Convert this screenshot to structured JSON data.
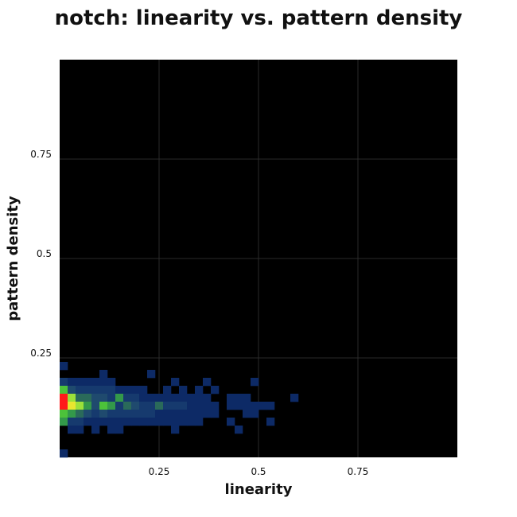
{
  "chart_data": {
    "type": "heatmap",
    "title": "notch: linearity vs. pattern density",
    "xlabel": "linearity",
    "ylabel": "pattern density",
    "xlim": [
      0,
      1
    ],
    "ylim": [
      0,
      1
    ],
    "xticks": [
      0.25,
      0.5,
      0.75
    ],
    "xtick_labels": [
      "0.25",
      "0.5",
      "0.75"
    ],
    "yticks": [
      0.25,
      0.5,
      0.75
    ],
    "ytick_labels": [
      "0.25",
      "0.5",
      "0.75"
    ],
    "grid": true,
    "bin_size": 0.02,
    "colors": {
      "background": "#000000",
      "grid": "#2a2a2a",
      "1": "#0d2a66",
      "2": "#163a6e",
      "3": "#1f4a6e",
      "4": "#2a6a5a",
      "5": "#33994a",
      "6": "#4cc23a",
      "7": "#9be03a",
      "8": "#e8e630",
      "9": "#ff1a1a"
    },
    "cells": [
      [
        0.0,
        0.22,
        1
      ],
      [
        0.0,
        0.0,
        1
      ],
      [
        0.1,
        0.2,
        1
      ],
      [
        0.22,
        0.2,
        1
      ],
      [
        0.0,
        0.18,
        2
      ],
      [
        0.02,
        0.18,
        1
      ],
      [
        0.04,
        0.18,
        1
      ],
      [
        0.06,
        0.18,
        1
      ],
      [
        0.08,
        0.18,
        1
      ],
      [
        0.1,
        0.18,
        1
      ],
      [
        0.12,
        0.18,
        1
      ],
      [
        0.28,
        0.18,
        1
      ],
      [
        0.36,
        0.18,
        1
      ],
      [
        0.48,
        0.18,
        1
      ],
      [
        0.0,
        0.16,
        6
      ],
      [
        0.02,
        0.16,
        3
      ],
      [
        0.04,
        0.16,
        2
      ],
      [
        0.06,
        0.16,
        2
      ],
      [
        0.08,
        0.16,
        2
      ],
      [
        0.1,
        0.16,
        2
      ],
      [
        0.12,
        0.16,
        2
      ],
      [
        0.14,
        0.16,
        1
      ],
      [
        0.16,
        0.16,
        1
      ],
      [
        0.18,
        0.16,
        1
      ],
      [
        0.2,
        0.16,
        1
      ],
      [
        0.26,
        0.16,
        1
      ],
      [
        0.3,
        0.16,
        1
      ],
      [
        0.34,
        0.16,
        1
      ],
      [
        0.38,
        0.16,
        1
      ],
      [
        0.0,
        0.14,
        9
      ],
      [
        0.02,
        0.14,
        7
      ],
      [
        0.04,
        0.14,
        4
      ],
      [
        0.06,
        0.14,
        4
      ],
      [
        0.08,
        0.14,
        3
      ],
      [
        0.1,
        0.14,
        3
      ],
      [
        0.12,
        0.14,
        2
      ],
      [
        0.14,
        0.14,
        5
      ],
      [
        0.16,
        0.14,
        2
      ],
      [
        0.18,
        0.14,
        2
      ],
      [
        0.2,
        0.14,
        1
      ],
      [
        0.22,
        0.14,
        1
      ],
      [
        0.24,
        0.14,
        1
      ],
      [
        0.26,
        0.14,
        1
      ],
      [
        0.28,
        0.14,
        1
      ],
      [
        0.3,
        0.14,
        1
      ],
      [
        0.32,
        0.14,
        1
      ],
      [
        0.34,
        0.14,
        1
      ],
      [
        0.36,
        0.14,
        1
      ],
      [
        0.42,
        0.14,
        1
      ],
      [
        0.44,
        0.14,
        1
      ],
      [
        0.46,
        0.14,
        1
      ],
      [
        0.58,
        0.14,
        1
      ],
      [
        0.0,
        0.12,
        9
      ],
      [
        0.02,
        0.12,
        8
      ],
      [
        0.04,
        0.12,
        7
      ],
      [
        0.06,
        0.12,
        5
      ],
      [
        0.08,
        0.12,
        3
      ],
      [
        0.1,
        0.12,
        6
      ],
      [
        0.12,
        0.12,
        5
      ],
      [
        0.14,
        0.12,
        2
      ],
      [
        0.16,
        0.12,
        4
      ],
      [
        0.18,
        0.12,
        3
      ],
      [
        0.2,
        0.12,
        2
      ],
      [
        0.22,
        0.12,
        2
      ],
      [
        0.24,
        0.12,
        4
      ],
      [
        0.26,
        0.12,
        2
      ],
      [
        0.28,
        0.12,
        2
      ],
      [
        0.3,
        0.12,
        2
      ],
      [
        0.32,
        0.12,
        1
      ],
      [
        0.34,
        0.12,
        1
      ],
      [
        0.36,
        0.12,
        1
      ],
      [
        0.38,
        0.12,
        1
      ],
      [
        0.42,
        0.12,
        1
      ],
      [
        0.44,
        0.12,
        1
      ],
      [
        0.46,
        0.12,
        1
      ],
      [
        0.48,
        0.12,
        1
      ],
      [
        0.5,
        0.12,
        1
      ],
      [
        0.52,
        0.12,
        1
      ],
      [
        0.0,
        0.1,
        6
      ],
      [
        0.02,
        0.1,
        5
      ],
      [
        0.04,
        0.1,
        4
      ],
      [
        0.06,
        0.1,
        3
      ],
      [
        0.08,
        0.1,
        2
      ],
      [
        0.1,
        0.1,
        3
      ],
      [
        0.12,
        0.1,
        2
      ],
      [
        0.14,
        0.1,
        2
      ],
      [
        0.16,
        0.1,
        2
      ],
      [
        0.18,
        0.1,
        2
      ],
      [
        0.2,
        0.1,
        2
      ],
      [
        0.22,
        0.1,
        2
      ],
      [
        0.24,
        0.1,
        1
      ],
      [
        0.26,
        0.1,
        1
      ],
      [
        0.28,
        0.1,
        1
      ],
      [
        0.3,
        0.1,
        1
      ],
      [
        0.32,
        0.1,
        1
      ],
      [
        0.34,
        0.1,
        1
      ],
      [
        0.36,
        0.1,
        1
      ],
      [
        0.38,
        0.1,
        1
      ],
      [
        0.46,
        0.1,
        1
      ],
      [
        0.48,
        0.1,
        1
      ],
      [
        0.0,
        0.08,
        5
      ],
      [
        0.02,
        0.08,
        2
      ],
      [
        0.04,
        0.08,
        2
      ],
      [
        0.06,
        0.08,
        1
      ],
      [
        0.08,
        0.08,
        1
      ],
      [
        0.1,
        0.08,
        1
      ],
      [
        0.12,
        0.08,
        1
      ],
      [
        0.14,
        0.08,
        1
      ],
      [
        0.16,
        0.08,
        1
      ],
      [
        0.18,
        0.08,
        1
      ],
      [
        0.2,
        0.08,
        1
      ],
      [
        0.22,
        0.08,
        1
      ],
      [
        0.24,
        0.08,
        1
      ],
      [
        0.26,
        0.08,
        1
      ],
      [
        0.28,
        0.08,
        1
      ],
      [
        0.3,
        0.08,
        1
      ],
      [
        0.32,
        0.08,
        1
      ],
      [
        0.34,
        0.08,
        1
      ],
      [
        0.42,
        0.08,
        1
      ],
      [
        0.52,
        0.08,
        1
      ],
      [
        0.02,
        0.06,
        1
      ],
      [
        0.04,
        0.06,
        1
      ],
      [
        0.08,
        0.06,
        1
      ],
      [
        0.12,
        0.06,
        1
      ],
      [
        0.14,
        0.06,
        1
      ],
      [
        0.28,
        0.06,
        1
      ],
      [
        0.44,
        0.06,
        1
      ]
    ]
  }
}
